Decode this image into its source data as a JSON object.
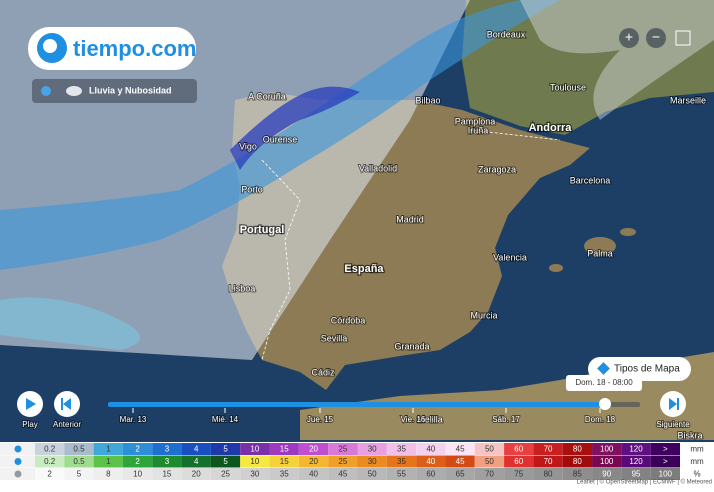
{
  "header": {
    "logo": "tiempo.com",
    "layer": "Lluvia y Nubosidad"
  },
  "map": {
    "places": [
      "Bordeaux",
      "Toulouse",
      "Marseille",
      "A Coruña",
      "Bilbao",
      "Pamplona",
      "Iruña",
      "Vigo",
      "Ourense",
      "Porto",
      "Valladolid",
      "Zaragoza",
      "Barcelona",
      "Madrid",
      "Valencia",
      "Palma",
      "Lisboa",
      "Murcia",
      "Córdoba",
      "Sevilla",
      "Granada",
      "Cádiz",
      "Melilla",
      "Biskra"
    ],
    "countries": [
      "Andorra",
      "Portugal",
      "España"
    ]
  },
  "controls": {
    "zoom_in": "+",
    "zoom_out": "−",
    "map_types": "Tipos de Mapa",
    "current_time": "Dom. 18 - 08:00",
    "play": "Play",
    "previous": "Anterior",
    "next": "Siguiente"
  },
  "timeline": {
    "days": [
      "Mar. 13",
      "Mié. 14",
      "Jue. 15",
      "Vie. 16",
      "Sáb. 17",
      "Dom. 18"
    ]
  },
  "legend": {
    "rain": {
      "values": [
        "0.2",
        "0.5",
        "1",
        "2",
        "3",
        "4",
        "5",
        "10",
        "15",
        "20",
        "25",
        "30",
        "35",
        "40",
        "45",
        "50",
        "60",
        "70",
        "80",
        "100",
        "120",
        ">"
      ],
      "unit": "mm"
    },
    "snow": {
      "values": [
        "0.2",
        "0.5",
        "1",
        "2",
        "3",
        "4",
        "5",
        "10",
        "15",
        "20",
        "25",
        "30",
        "35",
        "40",
        "45",
        "50",
        "60",
        "70",
        "80",
        "100",
        "120",
        ">"
      ],
      "unit": "mm"
    },
    "cloud": {
      "values": [
        "2",
        "5",
        "8",
        "10",
        "15",
        "20",
        "25",
        "30",
        "35",
        "40",
        "45",
        "50",
        "55",
        "60",
        "65",
        "70",
        "75",
        "80",
        "85",
        "90",
        "95",
        "100"
      ],
      "unit": "%"
    }
  },
  "attribution": "Leaflet | © OpenStreetMap | ECMWF | © Meteored"
}
